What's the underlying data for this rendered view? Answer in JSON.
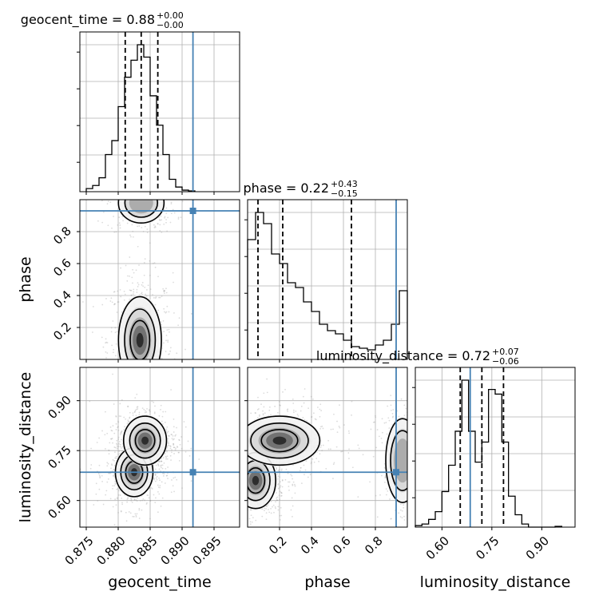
{
  "chart_data": {
    "type": "corner",
    "parameters": [
      "geocent_time",
      "phase",
      "luminosity_distance"
    ],
    "truths": {
      "geocent_time": 0.8917,
      "phase": 0.93,
      "luminosity_distance": 0.685
    },
    "truth_color": "#4682b4",
    "titles": [
      {
        "parameter": "geocent_time",
        "label": "geocent_time = 0.88",
        "sup": "+0.00",
        "sub": "−0.00"
      },
      {
        "parameter": "phase",
        "label": "phase = 0.22",
        "sup": "+0.43",
        "sub": "−0.15"
      },
      {
        "parameter": "luminosity_distance",
        "label": "luminosity_distance = 0.72",
        "sup": "+0.07",
        "sub": "−0.06"
      }
    ],
    "axis_labels": {
      "x": [
        "geocent_time",
        "phase",
        "luminosity_distance"
      ],
      "y": [
        "phase",
        "luminosity_distance"
      ]
    },
    "ranges": {
      "geocent_time": [
        0.874,
        0.899
      ],
      "phase": [
        0.0,
        1.0
      ],
      "luminosity_distance": [
        0.52,
        1.0
      ]
    },
    "ticks": {
      "geocent_time": [
        "0.875",
        "0.880",
        "0.885",
        "0.890",
        "0.895"
      ],
      "phase_y": [
        "0.2",
        "0.4",
        "0.6",
        "0.8"
      ],
      "phase_x": [
        "0.2",
        "0.4",
        "0.6",
        "0.8"
      ],
      "luminosity_distance": [
        "0.60",
        "0.75",
        "0.90"
      ]
    },
    "quantiles": {
      "geocent_time": [
        0.8811,
        0.8836,
        0.8862
      ],
      "phase": [
        0.065,
        0.22,
        0.65
      ],
      "luminosity_distance": [
        0.655,
        0.72,
        0.785
      ]
    },
    "histograms": {
      "geocent_time": {
        "edges": [
          0.875,
          0.876,
          0.877,
          0.878,
          0.879,
          0.88,
          0.881,
          0.882,
          0.883,
          0.884,
          0.885,
          0.886,
          0.887,
          0.888,
          0.889,
          0.89,
          0.891,
          0.892
        ],
        "counts": [
          0.02,
          0.04,
          0.09,
          0.24,
          0.33,
          0.55,
          0.74,
          0.85,
          0.95,
          0.87,
          0.62,
          0.43,
          0.24,
          0.08,
          0.03,
          0.01,
          0.005
        ]
      },
      "phase": {
        "edges": [
          0.0,
          0.05,
          0.1,
          0.15,
          0.2,
          0.25,
          0.3,
          0.35,
          0.4,
          0.45,
          0.5,
          0.55,
          0.6,
          0.65,
          0.7,
          0.75,
          0.8,
          0.85,
          0.9,
          0.95,
          1.0
        ],
        "counts": [
          0.75,
          0.92,
          0.85,
          0.66,
          0.6,
          0.48,
          0.45,
          0.36,
          0.3,
          0.22,
          0.18,
          0.16,
          0.12,
          0.08,
          0.07,
          0.06,
          0.09,
          0.12,
          0.22,
          0.43
        ]
      },
      "luminosity_distance": {
        "edges": [
          0.52,
          0.54,
          0.56,
          0.58,
          0.6,
          0.62,
          0.64,
          0.66,
          0.68,
          0.7,
          0.72,
          0.74,
          0.76,
          0.78,
          0.8,
          0.82,
          0.84,
          0.86,
          0.88,
          0.9,
          0.92,
          0.94,
          0.96
        ],
        "counts": [
          0.01,
          0.02,
          0.05,
          0.1,
          0.23,
          0.4,
          0.62,
          0.95,
          0.62,
          0.42,
          0.55,
          0.89,
          0.86,
          0.55,
          0.2,
          0.08,
          0.02,
          0.0,
          0.0,
          0.0,
          0.0,
          0.005
        ]
      }
    },
    "density_clusters": [
      {
        "panel": "geocent_time-phase",
        "cx": 0.8834,
        "cy": 0.12,
        "sx": 0.0016,
        "sy": 0.13,
        "weight": 1.0
      },
      {
        "panel": "geocent_time-phase",
        "cx": 0.8836,
        "cy": 0.98,
        "sx": 0.0017,
        "sy": 0.06,
        "weight": 0.5
      },
      {
        "panel": "geocent_time-luminosity_distance",
        "cx": 0.8825,
        "cy": 0.685,
        "sx": 0.0014,
        "sy": 0.035,
        "weight": 1.0
      },
      {
        "panel": "geocent_time-luminosity_distance",
        "cx": 0.8842,
        "cy": 0.78,
        "sx": 0.0016,
        "sy": 0.035,
        "weight": 0.9
      },
      {
        "panel": "phase-luminosity_distance",
        "cx": 0.05,
        "cy": 0.66,
        "sx": 0.06,
        "sy": 0.04,
        "weight": 1.0
      },
      {
        "panel": "phase-luminosity_distance",
        "cx": 0.2,
        "cy": 0.78,
        "sx": 0.12,
        "sy": 0.035,
        "weight": 0.9
      },
      {
        "panel": "phase-luminosity_distance",
        "cx": 0.97,
        "cy": 0.72,
        "sx": 0.05,
        "sy": 0.06,
        "weight": 0.45
      }
    ],
    "grid": true
  }
}
